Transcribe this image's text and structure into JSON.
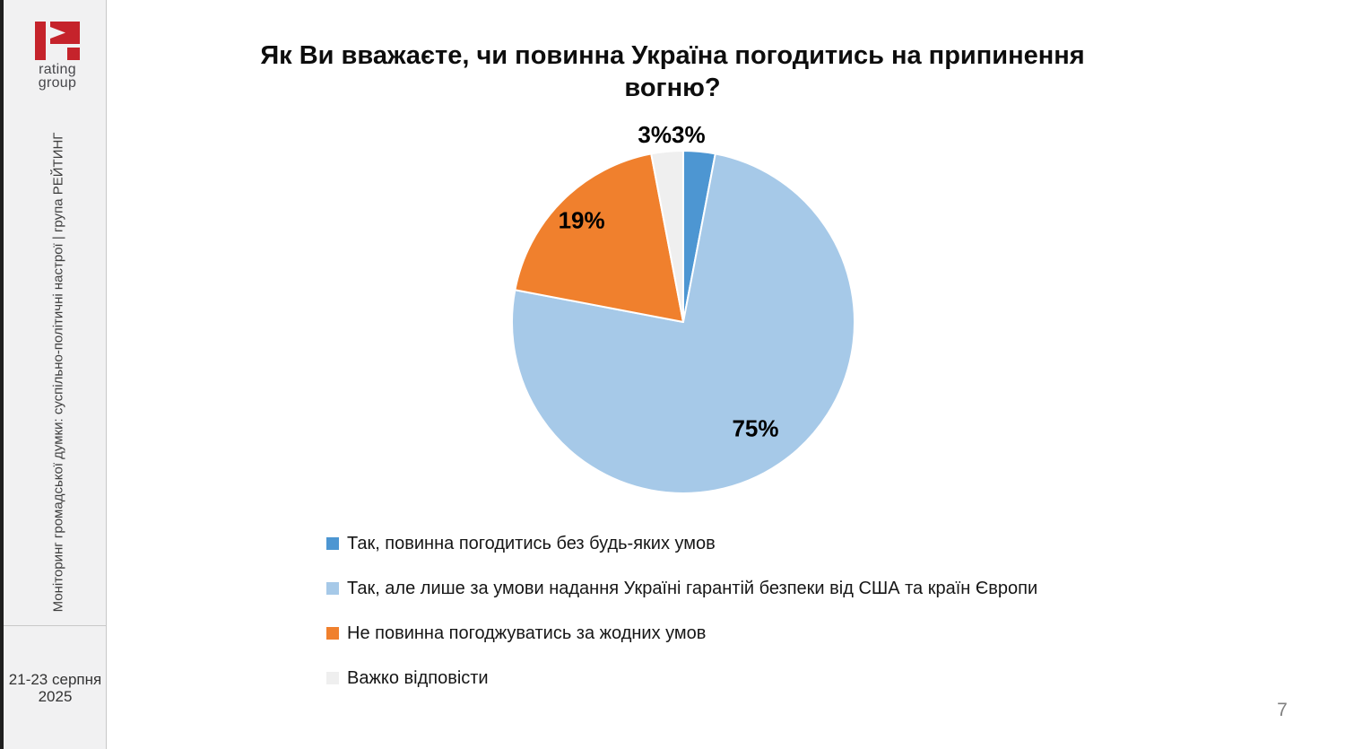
{
  "sidebar": {
    "brand_color": "#c5232b",
    "brand_line1": "rating",
    "brand_line2": "group",
    "vertical_text": "Моніторинг громадської думки: суспільно-політичні настрої | група РЕЙТИНГ",
    "date_line1": "21-23 серпня",
    "date_line2": "2025"
  },
  "main": {
    "title": "Як Ви вважаєте, чи повинна Україна погодитись на припинення вогню?",
    "page_number": "7"
  },
  "chart_data": {
    "type": "pie",
    "title": "Як Ви вважаєте, чи повинна Україна погодитись на припинення вогню?",
    "start_angle_deg": 0,
    "direction": "clockwise",
    "value_suffix": "%",
    "legend_position": "bottom-left",
    "slices": [
      {
        "label": "Так, повинна погодитись без будь-яких умов",
        "value": 3,
        "color": "#4d96d2"
      },
      {
        "label": "Так, але лише за умови надання Україні гарантій безпеки від США та країн Європи",
        "value": 75,
        "color": "#a6c9e8"
      },
      {
        "label": "Не повинна погоджуватись за жодних умов",
        "value": 19,
        "color": "#f0802d"
      },
      {
        "label": "Важко відповісти",
        "value": 3,
        "color": "#efefef"
      }
    ]
  }
}
